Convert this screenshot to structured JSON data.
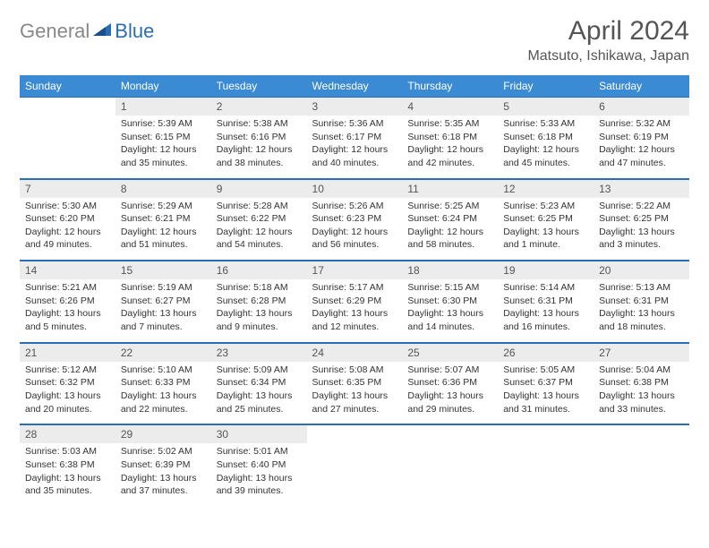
{
  "logo": {
    "part1": "General",
    "part2": "Blue"
  },
  "title": "April 2024",
  "location": "Matsuto, Ishikawa, Japan",
  "colors": {
    "header_bg": "#3b8bd4",
    "header_text": "#ffffff",
    "daynum_bg": "#ececec",
    "border": "#2a6db5",
    "text": "#333333",
    "title_text": "#555555",
    "logo_gray": "#888888",
    "logo_blue": "#2a6db5"
  },
  "daynames": [
    "Sunday",
    "Monday",
    "Tuesday",
    "Wednesday",
    "Thursday",
    "Friday",
    "Saturday"
  ],
  "weeks": [
    [
      {
        "day": "",
        "sunrise": "",
        "sunset": "",
        "dayl1": "",
        "dayl2": ""
      },
      {
        "day": "1",
        "sunrise": "Sunrise: 5:39 AM",
        "sunset": "Sunset: 6:15 PM",
        "dayl1": "Daylight: 12 hours",
        "dayl2": "and 35 minutes."
      },
      {
        "day": "2",
        "sunrise": "Sunrise: 5:38 AM",
        "sunset": "Sunset: 6:16 PM",
        "dayl1": "Daylight: 12 hours",
        "dayl2": "and 38 minutes."
      },
      {
        "day": "3",
        "sunrise": "Sunrise: 5:36 AM",
        "sunset": "Sunset: 6:17 PM",
        "dayl1": "Daylight: 12 hours",
        "dayl2": "and 40 minutes."
      },
      {
        "day": "4",
        "sunrise": "Sunrise: 5:35 AM",
        "sunset": "Sunset: 6:18 PM",
        "dayl1": "Daylight: 12 hours",
        "dayl2": "and 42 minutes."
      },
      {
        "day": "5",
        "sunrise": "Sunrise: 5:33 AM",
        "sunset": "Sunset: 6:18 PM",
        "dayl1": "Daylight: 12 hours",
        "dayl2": "and 45 minutes."
      },
      {
        "day": "6",
        "sunrise": "Sunrise: 5:32 AM",
        "sunset": "Sunset: 6:19 PM",
        "dayl1": "Daylight: 12 hours",
        "dayl2": "and 47 minutes."
      }
    ],
    [
      {
        "day": "7",
        "sunrise": "Sunrise: 5:30 AM",
        "sunset": "Sunset: 6:20 PM",
        "dayl1": "Daylight: 12 hours",
        "dayl2": "and 49 minutes."
      },
      {
        "day": "8",
        "sunrise": "Sunrise: 5:29 AM",
        "sunset": "Sunset: 6:21 PM",
        "dayl1": "Daylight: 12 hours",
        "dayl2": "and 51 minutes."
      },
      {
        "day": "9",
        "sunrise": "Sunrise: 5:28 AM",
        "sunset": "Sunset: 6:22 PM",
        "dayl1": "Daylight: 12 hours",
        "dayl2": "and 54 minutes."
      },
      {
        "day": "10",
        "sunrise": "Sunrise: 5:26 AM",
        "sunset": "Sunset: 6:23 PM",
        "dayl1": "Daylight: 12 hours",
        "dayl2": "and 56 minutes."
      },
      {
        "day": "11",
        "sunrise": "Sunrise: 5:25 AM",
        "sunset": "Sunset: 6:24 PM",
        "dayl1": "Daylight: 12 hours",
        "dayl2": "and 58 minutes."
      },
      {
        "day": "12",
        "sunrise": "Sunrise: 5:23 AM",
        "sunset": "Sunset: 6:25 PM",
        "dayl1": "Daylight: 13 hours",
        "dayl2": "and 1 minute."
      },
      {
        "day": "13",
        "sunrise": "Sunrise: 5:22 AM",
        "sunset": "Sunset: 6:25 PM",
        "dayl1": "Daylight: 13 hours",
        "dayl2": "and 3 minutes."
      }
    ],
    [
      {
        "day": "14",
        "sunrise": "Sunrise: 5:21 AM",
        "sunset": "Sunset: 6:26 PM",
        "dayl1": "Daylight: 13 hours",
        "dayl2": "and 5 minutes."
      },
      {
        "day": "15",
        "sunrise": "Sunrise: 5:19 AM",
        "sunset": "Sunset: 6:27 PM",
        "dayl1": "Daylight: 13 hours",
        "dayl2": "and 7 minutes."
      },
      {
        "day": "16",
        "sunrise": "Sunrise: 5:18 AM",
        "sunset": "Sunset: 6:28 PM",
        "dayl1": "Daylight: 13 hours",
        "dayl2": "and 9 minutes."
      },
      {
        "day": "17",
        "sunrise": "Sunrise: 5:17 AM",
        "sunset": "Sunset: 6:29 PM",
        "dayl1": "Daylight: 13 hours",
        "dayl2": "and 12 minutes."
      },
      {
        "day": "18",
        "sunrise": "Sunrise: 5:15 AM",
        "sunset": "Sunset: 6:30 PM",
        "dayl1": "Daylight: 13 hours",
        "dayl2": "and 14 minutes."
      },
      {
        "day": "19",
        "sunrise": "Sunrise: 5:14 AM",
        "sunset": "Sunset: 6:31 PM",
        "dayl1": "Daylight: 13 hours",
        "dayl2": "and 16 minutes."
      },
      {
        "day": "20",
        "sunrise": "Sunrise: 5:13 AM",
        "sunset": "Sunset: 6:31 PM",
        "dayl1": "Daylight: 13 hours",
        "dayl2": "and 18 minutes."
      }
    ],
    [
      {
        "day": "21",
        "sunrise": "Sunrise: 5:12 AM",
        "sunset": "Sunset: 6:32 PM",
        "dayl1": "Daylight: 13 hours",
        "dayl2": "and 20 minutes."
      },
      {
        "day": "22",
        "sunrise": "Sunrise: 5:10 AM",
        "sunset": "Sunset: 6:33 PM",
        "dayl1": "Daylight: 13 hours",
        "dayl2": "and 22 minutes."
      },
      {
        "day": "23",
        "sunrise": "Sunrise: 5:09 AM",
        "sunset": "Sunset: 6:34 PM",
        "dayl1": "Daylight: 13 hours",
        "dayl2": "and 25 minutes."
      },
      {
        "day": "24",
        "sunrise": "Sunrise: 5:08 AM",
        "sunset": "Sunset: 6:35 PM",
        "dayl1": "Daylight: 13 hours",
        "dayl2": "and 27 minutes."
      },
      {
        "day": "25",
        "sunrise": "Sunrise: 5:07 AM",
        "sunset": "Sunset: 6:36 PM",
        "dayl1": "Daylight: 13 hours",
        "dayl2": "and 29 minutes."
      },
      {
        "day": "26",
        "sunrise": "Sunrise: 5:05 AM",
        "sunset": "Sunset: 6:37 PM",
        "dayl1": "Daylight: 13 hours",
        "dayl2": "and 31 minutes."
      },
      {
        "day": "27",
        "sunrise": "Sunrise: 5:04 AM",
        "sunset": "Sunset: 6:38 PM",
        "dayl1": "Daylight: 13 hours",
        "dayl2": "and 33 minutes."
      }
    ],
    [
      {
        "day": "28",
        "sunrise": "Sunrise: 5:03 AM",
        "sunset": "Sunset: 6:38 PM",
        "dayl1": "Daylight: 13 hours",
        "dayl2": "and 35 minutes."
      },
      {
        "day": "29",
        "sunrise": "Sunrise: 5:02 AM",
        "sunset": "Sunset: 6:39 PM",
        "dayl1": "Daylight: 13 hours",
        "dayl2": "and 37 minutes."
      },
      {
        "day": "30",
        "sunrise": "Sunrise: 5:01 AM",
        "sunset": "Sunset: 6:40 PM",
        "dayl1": "Daylight: 13 hours",
        "dayl2": "and 39 minutes."
      },
      {
        "day": "",
        "sunrise": "",
        "sunset": "",
        "dayl1": "",
        "dayl2": ""
      },
      {
        "day": "",
        "sunrise": "",
        "sunset": "",
        "dayl1": "",
        "dayl2": ""
      },
      {
        "day": "",
        "sunrise": "",
        "sunset": "",
        "dayl1": "",
        "dayl2": ""
      },
      {
        "day": "",
        "sunrise": "",
        "sunset": "",
        "dayl1": "",
        "dayl2": ""
      }
    ]
  ]
}
